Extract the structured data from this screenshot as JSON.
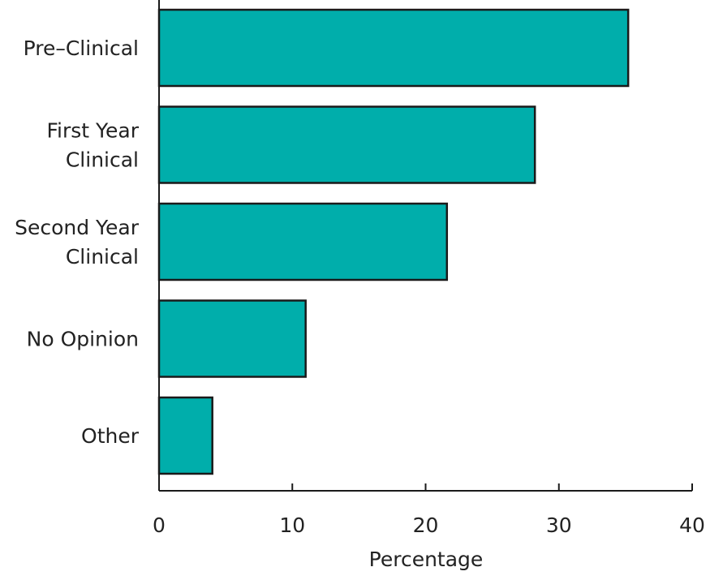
{
  "chart_data": {
    "type": "bar",
    "orientation": "horizontal",
    "categories": [
      "Pre–Clinical",
      "First Year Clinical",
      "Second Year Clinical",
      "No Opinion",
      "Other"
    ],
    "category_label_lines": [
      [
        "Pre–Clinical"
      ],
      [
        "First Year",
        "Clinical"
      ],
      [
        "Second Year",
        "Clinical"
      ],
      [
        "No Opinion"
      ],
      [
        "Other"
      ]
    ],
    "values": [
      35.2,
      28.2,
      21.6,
      11.0,
      4.0
    ],
    "xlabel": "Percentage",
    "ylabel": "",
    "xlim": [
      0,
      40
    ],
    "xticks": [
      0,
      10,
      20,
      30,
      40
    ],
    "xtick_labels": [
      "0",
      "10",
      "20",
      "30",
      "40"
    ],
    "grid": false,
    "bar_color": "#00aeab",
    "bar_edge_color": "#1a1a1a"
  }
}
